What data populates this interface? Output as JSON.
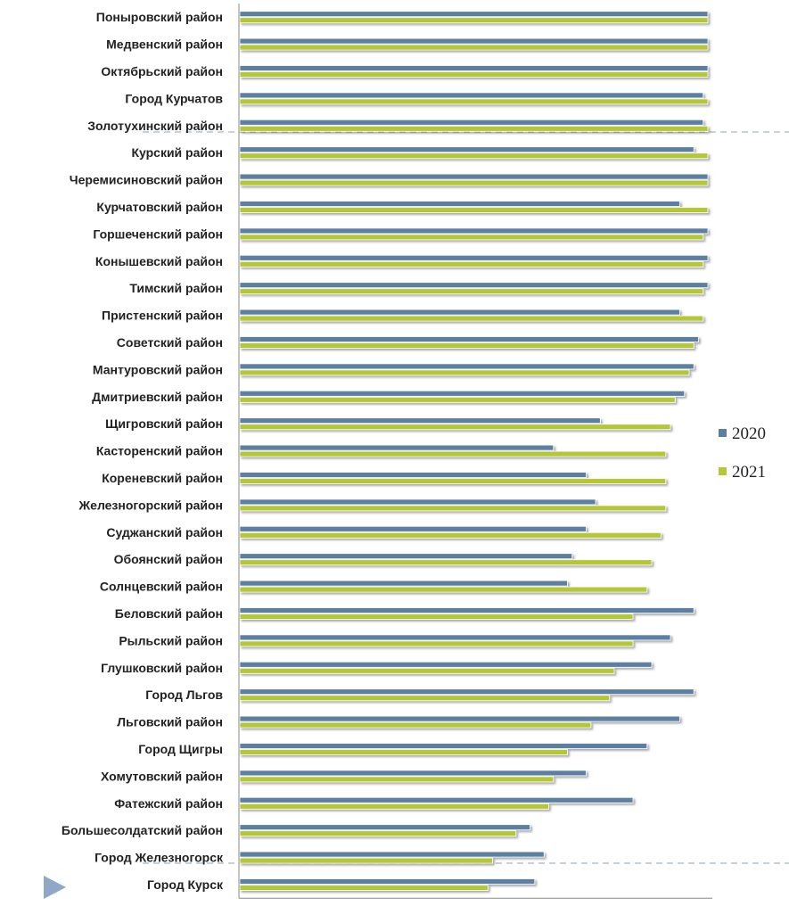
{
  "chart_data": {
    "type": "bar",
    "orientation": "horizontal",
    "title": "",
    "xlabel": "",
    "ylabel": "",
    "xlim": [
      0,
      100
    ],
    "legend_position": "right",
    "categories": [
      "Поныровский район",
      "Медвенский район",
      "Октябрьский район",
      "Город Курчатов",
      "Золотухинский район",
      "Курский район",
      "Черемисиновский район",
      "Курчатовский район",
      "Горшеченский район",
      "Конышевский район",
      "Тимский район",
      "Пристенский район",
      "Советский район",
      "Мантуровский район",
      "Дмитриевский район",
      "Щигровский район",
      "Касторенский район",
      "Кореневский район",
      "Железногорский район",
      "Суджанский район",
      "Обоянский район",
      "Солнцевский район",
      "Беловский  район",
      "Рыльский район",
      "Глушковский район",
      "Город Льгов",
      "Льговский район",
      "Город Щигры",
      "Хомутовский район",
      "Фатежский район",
      "Большесолдатский район",
      "Город Железногорск",
      "Город Курск"
    ],
    "series": [
      {
        "name": "2020",
        "color": "#5b7fa3",
        "values": [
          100,
          100,
          100,
          99,
          99,
          97,
          100,
          94,
          100,
          100,
          100,
          94,
          98,
          97,
          95,
          77,
          67,
          74,
          76,
          74,
          71,
          70,
          97,
          92,
          88,
          97,
          94,
          87,
          74,
          84,
          62,
          65,
          63
        ]
      },
      {
        "name": "2021",
        "color": "#b5c735",
        "values": [
          100,
          100,
          100,
          100,
          100,
          100,
          100,
          100,
          99,
          99,
          99,
          99,
          97,
          96,
          93,
          92,
          91,
          91,
          91,
          90,
          88,
          87,
          84,
          84,
          80,
          79,
          75,
          70,
          67,
          66,
          59,
          54,
          53
        ]
      }
    ]
  },
  "decorations": {
    "divider_color": "#a8b8c8",
    "marker_color": "#8fa8c8",
    "axis_color": "#888888"
  }
}
